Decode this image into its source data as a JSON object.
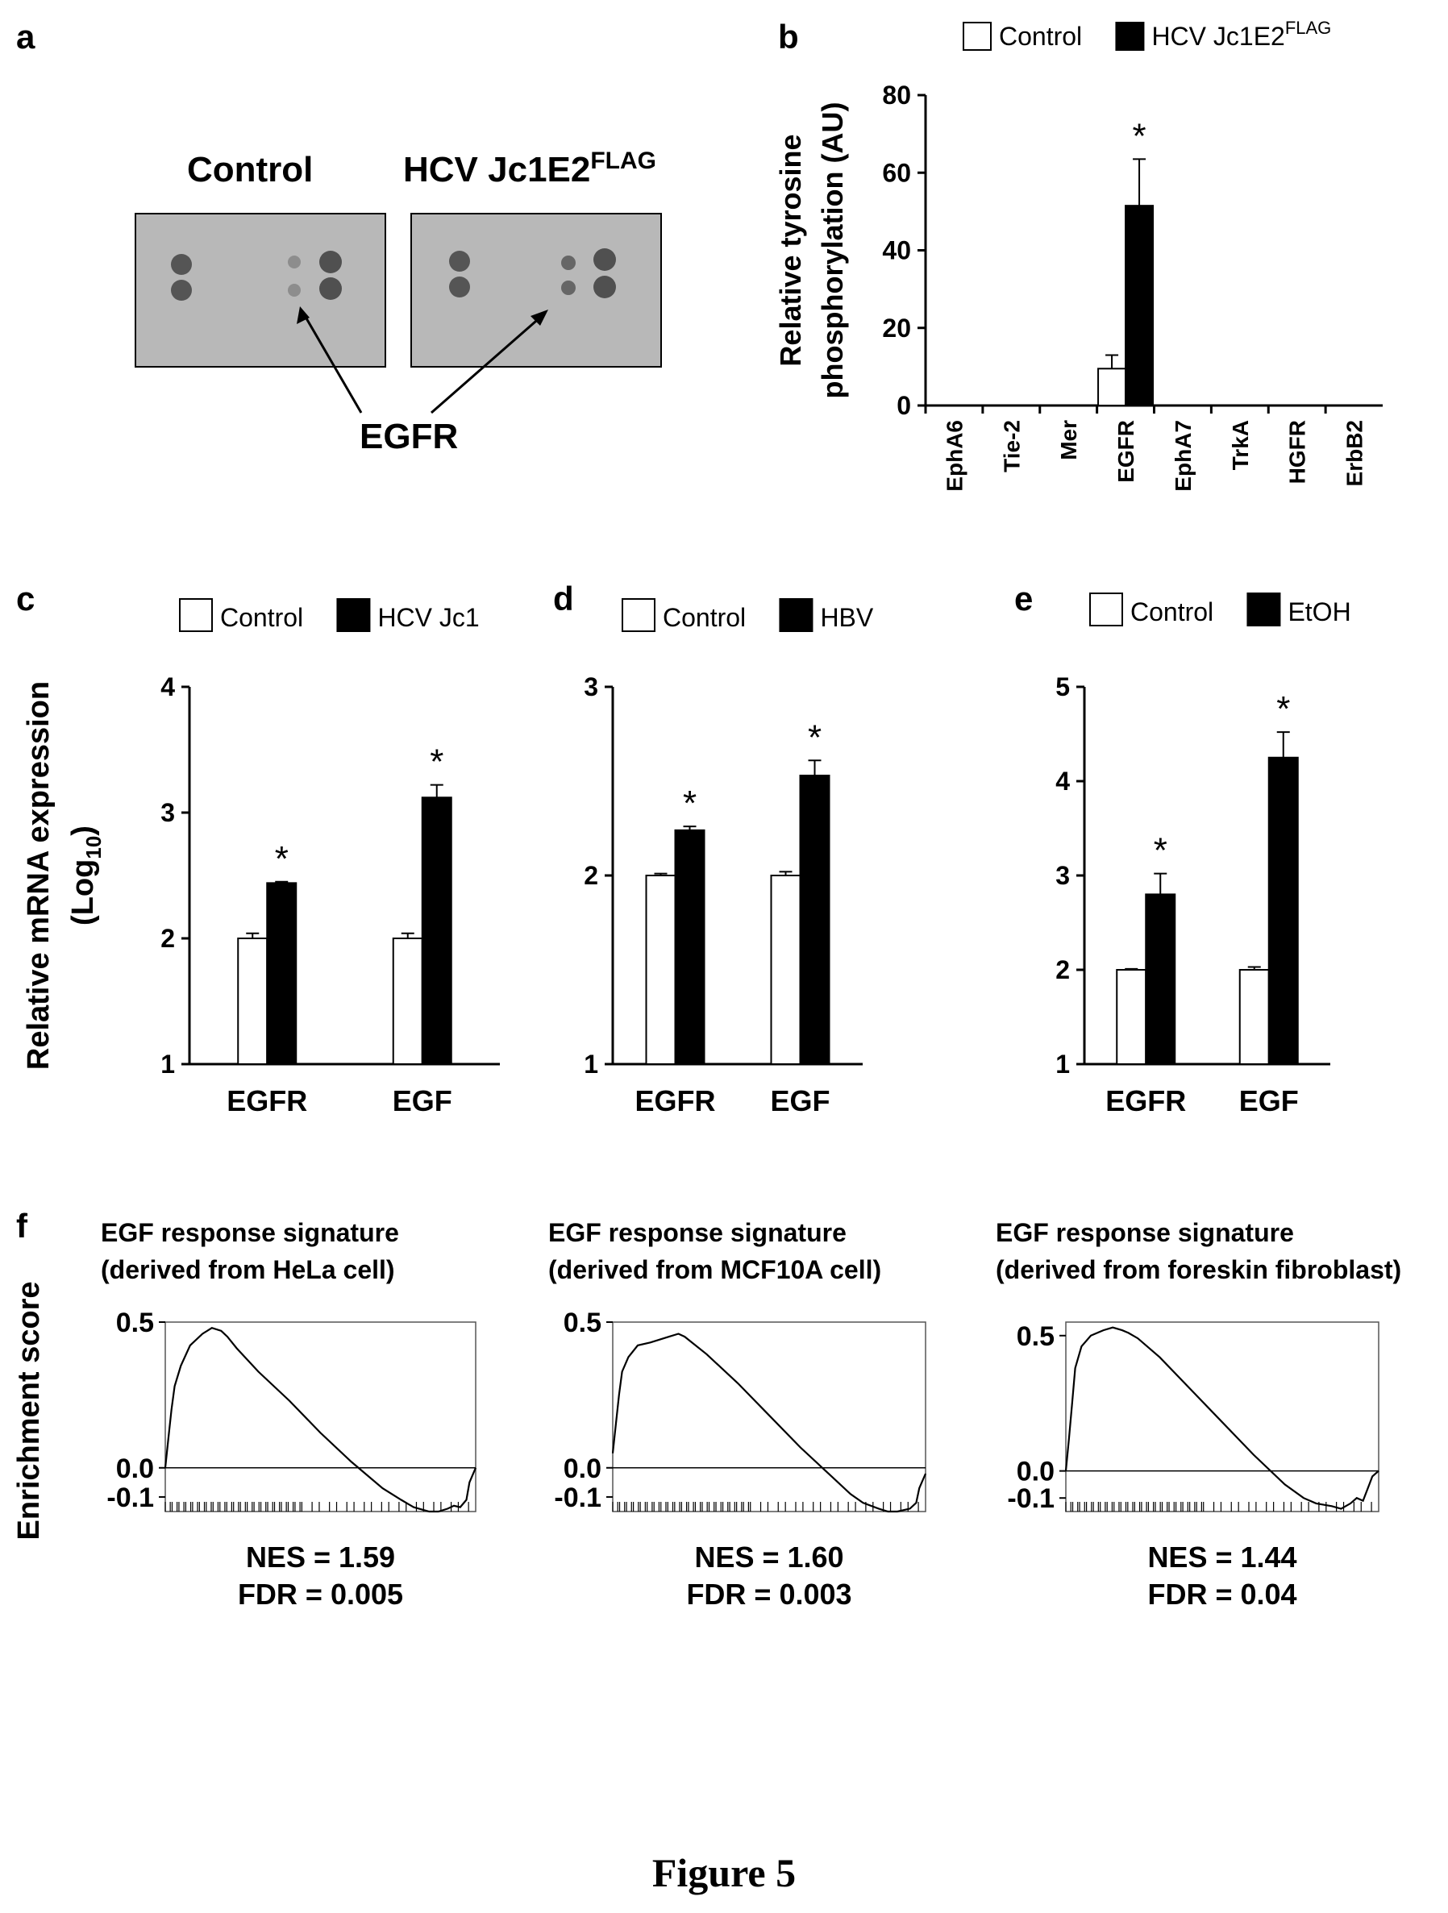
{
  "figure_caption": "Figure 5",
  "panels": {
    "a": {
      "letter": "a",
      "left_label": "Control",
      "right_label_main": "HCV Jc1E2",
      "right_label_sup": "FLAG",
      "arrow_label": "EGFR"
    },
    "f": {
      "letter": "f",
      "ylabel": "Enrichment score"
    }
  },
  "chart_data": [
    {
      "id": "b",
      "type": "bar",
      "letter": "b",
      "ylabel_line1": "Relative tyrosine",
      "ylabel_line2": "phosphorylation (AU)",
      "ylim": [
        0,
        80
      ],
      "yticks": [
        0,
        20,
        40,
        60,
        80
      ],
      "categories": [
        "EphA6",
        "Tie-2",
        "Mer",
        "EGFR",
        "EphA7",
        "TrkA",
        "HGFR",
        "ErbB2"
      ],
      "series": [
        {
          "name": "Control",
          "color": "#ffffff",
          "values": [
            0,
            0,
            0,
            9.5,
            0,
            0,
            0,
            0
          ],
          "errors": [
            0,
            0,
            0,
            3.5,
            0,
            0,
            0,
            0
          ]
        },
        {
          "name": "HCV Jc1E2",
          "name_sup": "FLAG",
          "color": "#000000",
          "values": [
            0,
            0,
            0,
            51.5,
            0,
            0,
            0,
            0
          ],
          "errors": [
            0,
            0,
            0,
            12,
            0,
            0,
            0,
            0
          ]
        }
      ],
      "significance": [
        {
          "category": "EGFR",
          "label": "*"
        }
      ]
    },
    {
      "id": "c",
      "type": "bar",
      "letter": "c",
      "ylabel_line1": "Relative mRNA expression",
      "ylabel_line2_main": "(Log",
      "ylabel_line2_sub": "10",
      "ylabel_line2_end": ")",
      "ylim": [
        1,
        4
      ],
      "yticks": [
        1,
        2,
        3,
        4
      ],
      "categories": [
        "EGFR",
        "EGF"
      ],
      "series": [
        {
          "name": "Control",
          "color": "#ffffff",
          "values": [
            2.0,
            2.0
          ],
          "errors": [
            0.04,
            0.04
          ]
        },
        {
          "name": "HCV Jc1",
          "color": "#000000",
          "values": [
            2.44,
            3.12
          ],
          "errors": [
            0.01,
            0.1
          ]
        }
      ],
      "significance": [
        {
          "category": "EGFR",
          "label": "*"
        },
        {
          "category": "EGF",
          "label": "*"
        }
      ]
    },
    {
      "id": "d",
      "type": "bar",
      "letter": "d",
      "ylim": [
        1,
        3
      ],
      "yticks": [
        1,
        2,
        3
      ],
      "categories": [
        "EGFR",
        "EGF"
      ],
      "series": [
        {
          "name": "Control",
          "color": "#ffffff",
          "values": [
            2.0,
            2.0
          ],
          "errors": [
            0.01,
            0.02
          ]
        },
        {
          "name": "HBV",
          "color": "#000000",
          "values": [
            2.24,
            2.53
          ],
          "errors": [
            0.02,
            0.08
          ]
        }
      ],
      "significance": [
        {
          "category": "EGFR",
          "label": "*"
        },
        {
          "category": "EGF",
          "label": "*"
        }
      ]
    },
    {
      "id": "e",
      "type": "bar",
      "letter": "e",
      "ylim": [
        1,
        5
      ],
      "yticks": [
        1,
        2,
        3,
        4,
        5
      ],
      "categories": [
        "EGFR",
        "EGF"
      ],
      "series": [
        {
          "name": "Control",
          "color": "#ffffff",
          "values": [
            2.0,
            2.0
          ],
          "errors": [
            0.01,
            0.03
          ]
        },
        {
          "name": "EtOH",
          "color": "#000000",
          "values": [
            2.8,
            4.25
          ],
          "errors": [
            0.22,
            0.27
          ]
        }
      ],
      "significance": [
        {
          "category": "EGFR",
          "label": "*"
        },
        {
          "category": "EGF",
          "label": "*"
        }
      ]
    },
    {
      "id": "f1",
      "type": "line",
      "title_line1": "EGF response signature",
      "title_line2": "(derived from HeLa cell)",
      "ylim": [
        -0.15,
        0.5
      ],
      "yticks": [
        0.5,
        0.0,
        -0.1
      ],
      "ytick_labels": [
        "0.5",
        "0.0",
        "-0.1"
      ],
      "x": [
        0,
        1,
        2,
        3,
        5,
        8,
        12,
        15,
        18,
        20,
        23,
        30,
        40,
        50,
        60,
        70,
        76,
        80,
        85,
        88,
        91,
        93,
        95,
        97,
        98,
        100
      ],
      "y": [
        0.0,
        0.1,
        0.2,
        0.28,
        0.35,
        0.42,
        0.46,
        0.48,
        0.47,
        0.45,
        0.41,
        0.33,
        0.23,
        0.12,
        0.02,
        -0.07,
        -0.11,
        -0.135,
        -0.15,
        -0.15,
        -0.14,
        -0.13,
        -0.135,
        -0.11,
        -0.05,
        0.0
      ],
      "nes": "NES = 1.59",
      "fdr": "FDR = 0.005"
    },
    {
      "id": "f2",
      "type": "line",
      "title_line1": "EGF response signature",
      "title_line2": "(derived from MCF10A cell)",
      "ylim": [
        -0.15,
        0.5
      ],
      "yticks": [
        0.5,
        0.0,
        -0.1
      ],
      "ytick_labels": [
        "0.5",
        "0.0",
        "-0.1"
      ],
      "x": [
        0,
        1,
        2,
        3,
        5,
        8,
        12,
        15,
        18,
        21,
        23,
        30,
        40,
        50,
        60,
        70,
        76,
        80,
        85,
        88,
        91,
        93,
        95,
        97,
        98,
        100
      ],
      "y": [
        0.05,
        0.15,
        0.25,
        0.33,
        0.38,
        0.42,
        0.43,
        0.44,
        0.45,
        0.46,
        0.45,
        0.39,
        0.29,
        0.18,
        0.07,
        -0.03,
        -0.09,
        -0.12,
        -0.14,
        -0.15,
        -0.15,
        -0.145,
        -0.14,
        -0.12,
        -0.07,
        -0.02
      ],
      "nes": "NES = 1.60",
      "fdr": "FDR = 0.003"
    },
    {
      "id": "f3",
      "type": "line",
      "title_line1": "EGF response signature",
      "title_line2": "(derived from foreskin fibroblast)",
      "ylim": [
        -0.15,
        0.55
      ],
      "yticks": [
        0.5,
        0.0,
        -0.1
      ],
      "ytick_labels": [
        "0.5",
        "0.0",
        "-0.1"
      ],
      "x": [
        0,
        1,
        2,
        3,
        5,
        8,
        12,
        15,
        18,
        20,
        23,
        30,
        40,
        50,
        60,
        70,
        76,
        80,
        85,
        88,
        91,
        93,
        95,
        97,
        98,
        100
      ],
      "y": [
        0.0,
        0.12,
        0.25,
        0.38,
        0.46,
        0.5,
        0.52,
        0.53,
        0.52,
        0.51,
        0.49,
        0.42,
        0.3,
        0.18,
        0.06,
        -0.05,
        -0.1,
        -0.12,
        -0.13,
        -0.14,
        -0.12,
        -0.1,
        -0.11,
        -0.05,
        -0.02,
        0.0
      ],
      "nes": "NES = 1.44",
      "fdr": "FDR = 0.04"
    }
  ]
}
